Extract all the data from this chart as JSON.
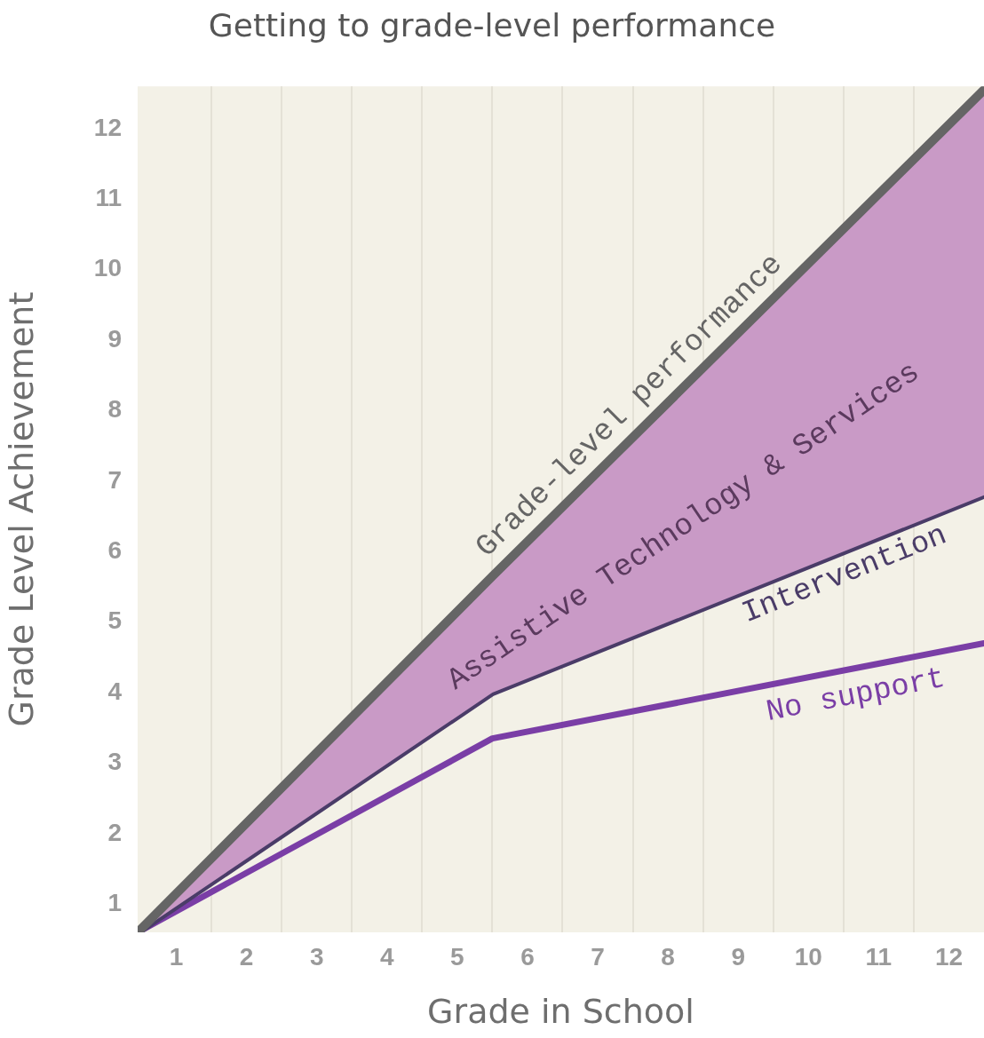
{
  "chart_data": {
    "type": "line",
    "title": "Getting to grade-level performance",
    "xlabel": "Grade in School",
    "ylabel": "Grade Level Achievement",
    "xlim": [
      0.45,
      12.5
    ],
    "ylim": [
      0.6,
      12.6
    ],
    "xticks": [
      1,
      {
        "value": 1.5,
        "label": null
      },
      2,
      {
        "value": 2.5,
        "label": null
      },
      3,
      {
        "value": 3.5,
        "label": null
      },
      4,
      {
        "value": 4.5,
        "label": null
      },
      5,
      {
        "value": 5.5,
        "label": null
      },
      6,
      {
        "value": 6.5,
        "label": null
      },
      7,
      {
        "value": 7.5,
        "label": null
      },
      8,
      {
        "value": 8.5,
        "label": null
      },
      9,
      {
        "value": 9.5,
        "label": null
      },
      10,
      {
        "value": 10.5,
        "label": null
      },
      11,
      {
        "value": 11.5,
        "label": null
      },
      12
    ],
    "yticks": [
      1,
      2,
      3,
      4,
      5,
      6,
      7,
      8,
      9,
      10,
      11,
      12
    ],
    "annotations": [
      "Assistive Technology & Services"
    ],
    "grid": "x",
    "legend": false,
    "marker": "none",
    "line_style": "solid",
    "series": [
      {
        "name": "Grade-level performance",
        "color": "#656565",
        "x": [
          0.45,
          5.5,
          12.5
        ],
        "values": [
          0.6,
          5.65,
          12.55
        ]
      },
      {
        "name": "Intervention",
        "color": "#4a3c68",
        "x": [
          0.45,
          5.5,
          12.5
        ],
        "values": [
          0.6,
          4.0,
          6.8
        ]
      },
      {
        "name": "No support",
        "color": "#7a3ea6",
        "x": [
          0.45,
          5.5,
          12.5
        ],
        "values": [
          0.6,
          3.35,
          4.7
        ]
      }
    ]
  }
}
